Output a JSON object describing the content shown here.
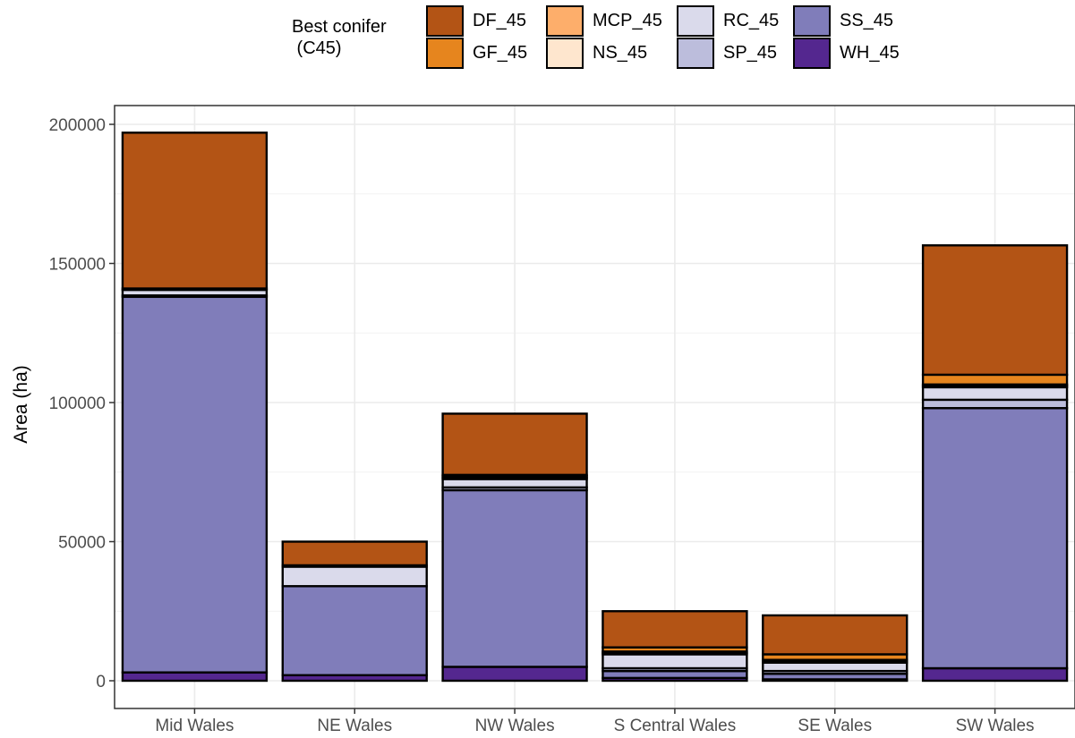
{
  "chart_data": {
    "type": "bar",
    "stacked": true,
    "ylabel": "Area (ha)",
    "xlabel": "",
    "ylim": [
      0,
      200000
    ],
    "yticks": [
      0,
      50000,
      100000,
      150000,
      200000
    ],
    "grid": true,
    "legend": {
      "title": "Best conifer\n (C45)",
      "position": "top"
    },
    "categories": [
      "Mid Wales",
      "NE Wales",
      "NW Wales",
      "S Central Wales",
      "SE Wales",
      "SW Wales"
    ],
    "series": [
      {
        "name": "WH_45",
        "color": "#54278f",
        "values": [
          3000,
          2000,
          5000,
          1000,
          500,
          4500
        ]
      },
      {
        "name": "SS_45",
        "color": "#807dba",
        "values": [
          135000,
          32000,
          63500,
          2500,
          2000,
          93500
        ]
      },
      {
        "name": "SP_45",
        "color": "#bcbddc",
        "values": [
          500,
          0,
          1000,
          1000,
          1000,
          3000
        ]
      },
      {
        "name": "RC_45",
        "color": "#dadaeb",
        "values": [
          2000,
          7000,
          3000,
          5000,
          3000,
          4500
        ]
      },
      {
        "name": "NS_45",
        "color": "#fee6ce",
        "values": [
          0,
          0,
          500,
          500,
          500,
          500
        ]
      },
      {
        "name": "MCP_45",
        "color": "#fdae6b",
        "values": [
          0,
          0,
          500,
          500,
          500,
          500
        ]
      },
      {
        "name": "GF_45",
        "color": "#e6851e",
        "values": [
          500,
          500,
          500,
          1500,
          2000,
          3500
        ]
      },
      {
        "name": "DF_45",
        "color": "#b35415",
        "values": [
          56000,
          8500,
          22000,
          13000,
          14000,
          46500
        ]
      }
    ],
    "legend_order": [
      "DF_45",
      "GF_45",
      "MCP_45",
      "NS_45",
      "RC_45",
      "SP_45",
      "SS_45",
      "WH_45"
    ]
  }
}
